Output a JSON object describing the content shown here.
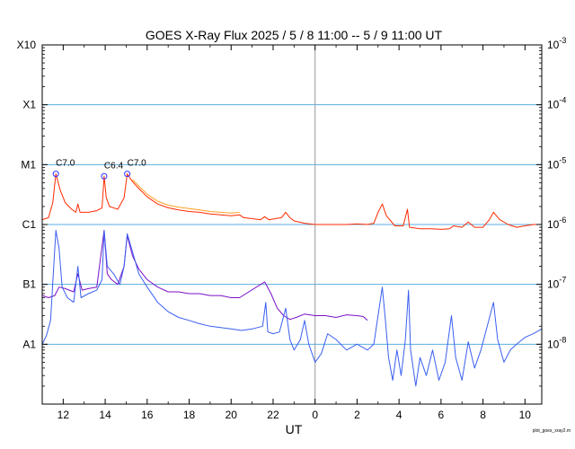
{
  "chart_data": {
    "type": "line",
    "title": "GOES X-Ray Flux   2025 /  5 /  8   11:00 --  5 /  9   11:00   UT",
    "xlabel": "UT",
    "x_ticks": [
      "12",
      "14",
      "16",
      "18",
      "20",
      "22",
      "0",
      "2",
      "4",
      "6",
      "8",
      "10"
    ],
    "x_range": [
      11,
      34.8
    ],
    "day_boundary_hour": 24,
    "y_scale": "log",
    "ylim": [
      1e-09,
      0.001
    ],
    "y_left_ticks": [
      "X10",
      "X1",
      "M1",
      "C1",
      "B1",
      "A1"
    ],
    "y_right_ticks": [
      "10-3",
      "10-4",
      "10-5",
      "10-6",
      "10-7",
      "10-8"
    ],
    "grid": "horizontal",
    "footer": "plot_goes_xray2.m",
    "colors": {
      "long_primary": "#ff2a00",
      "long_secondary": "#ffa020",
      "short_primary": "#3a5ff0",
      "short_secondary": "#7a10c8",
      "grid": "#5aaee0",
      "axis": "#000000",
      "marker": "#3030ff"
    },
    "annotations": [
      {
        "label": "C7.0",
        "hour": 11.65,
        "flux": 7e-06
      },
      {
        "label": "C6.4",
        "hour": 13.95,
        "flux": 6.4e-06
      },
      {
        "label": "C7.0",
        "hour": 15.05,
        "flux": 7e-06
      }
    ],
    "series": [
      {
        "key": "long_primary",
        "points": [
          [
            11.0,
            1.2e-06
          ],
          [
            11.3,
            1.3e-06
          ],
          [
            11.5,
            2.3e-06
          ],
          [
            11.65,
            7e-06
          ],
          [
            11.85,
            3.8e-06
          ],
          [
            12.1,
            2.3e-06
          ],
          [
            12.4,
            1.8e-06
          ],
          [
            12.6,
            1.6e-06
          ],
          [
            12.7,
            2.2e-06
          ],
          [
            12.8,
            1.6e-06
          ],
          [
            13.2,
            1.6e-06
          ],
          [
            13.6,
            1.7e-06
          ],
          [
            13.85,
            1.9e-06
          ],
          [
            13.95,
            6.4e-06
          ],
          [
            14.05,
            2.8e-06
          ],
          [
            14.2,
            2e-06
          ],
          [
            14.6,
            1.8e-06
          ],
          [
            14.9,
            2.8e-06
          ],
          [
            15.05,
            7e-06
          ],
          [
            15.3,
            5.2e-06
          ],
          [
            15.6,
            4e-06
          ],
          [
            16.0,
            2.9e-06
          ],
          [
            16.5,
            2.2e-06
          ],
          [
            17.0,
            1.9e-06
          ],
          [
            17.5,
            1.75e-06
          ],
          [
            18.0,
            1.65e-06
          ],
          [
            18.5,
            1.6e-06
          ],
          [
            19.0,
            1.5e-06
          ],
          [
            19.5,
            1.45e-06
          ],
          [
            20.0,
            1.4e-06
          ],
          [
            20.4,
            1.45e-06
          ],
          [
            20.6,
            1.3e-06
          ],
          [
            21.0,
            1.25e-06
          ],
          [
            21.4,
            1.2e-06
          ],
          [
            21.6,
            1.35e-06
          ],
          [
            21.8,
            1.2e-06
          ],
          [
            22.1,
            1.25e-06
          ],
          [
            22.4,
            1.3e-06
          ],
          [
            22.6,
            1.6e-06
          ],
          [
            22.8,
            1.3e-06
          ],
          [
            23.0,
            1.15e-06
          ],
          [
            23.5,
            1.05e-06
          ],
          [
            24.0,
            1e-06
          ],
          [
            24.5,
            1e-06
          ],
          [
            25.0,
            1e-06
          ],
          [
            25.5,
            1e-06
          ],
          [
            26.0,
            1.02e-06
          ],
          [
            26.5,
            1e-06
          ],
          [
            26.8,
            1.05e-06
          ],
          [
            27.0,
            1.6e-06
          ],
          [
            27.2,
            2.2e-06
          ],
          [
            27.4,
            1.4e-06
          ],
          [
            27.8,
            9.5e-07
          ],
          [
            28.2,
            9.5e-07
          ],
          [
            28.4,
            1.8e-06
          ],
          [
            28.5,
            9e-07
          ],
          [
            29.0,
            8.5e-07
          ],
          [
            29.5,
            8.5e-07
          ],
          [
            30.0,
            8.3e-07
          ],
          [
            30.4,
            8.5e-07
          ],
          [
            30.6,
            9.5e-07
          ],
          [
            31.0,
            9e-07
          ],
          [
            31.3,
            1.1e-06
          ],
          [
            31.6,
            9e-07
          ],
          [
            32.0,
            9e-07
          ],
          [
            32.3,
            1.2e-06
          ],
          [
            32.5,
            1.6e-06
          ],
          [
            32.8,
            1.2e-06
          ],
          [
            33.2,
            1e-06
          ],
          [
            33.6,
            9e-07
          ],
          [
            34.0,
            9.5e-07
          ],
          [
            34.4,
            1e-06
          ],
          [
            34.8,
            1e-06
          ]
        ]
      },
      {
        "key": "long_secondary",
        "points": [
          [
            15.3,
            5.6e-06
          ],
          [
            15.6,
            4.4e-06
          ],
          [
            16.0,
            3.2e-06
          ],
          [
            16.5,
            2.45e-06
          ],
          [
            17.0,
            2.1e-06
          ],
          [
            17.5,
            1.95e-06
          ],
          [
            18.0,
            1.85e-06
          ],
          [
            18.5,
            1.75e-06
          ],
          [
            19.0,
            1.65e-06
          ],
          [
            19.5,
            1.6e-06
          ],
          [
            20.0,
            1.55e-06
          ],
          [
            20.4,
            1.6e-06
          ]
        ]
      },
      {
        "key": "short_primary",
        "points": [
          [
            11.0,
            1e-08
          ],
          [
            11.2,
            1.4e-08
          ],
          [
            11.4,
            2.5e-08
          ],
          [
            11.55,
            2e-07
          ],
          [
            11.65,
            8e-07
          ],
          [
            11.8,
            4e-07
          ],
          [
            11.95,
            9e-08
          ],
          [
            12.2,
            6e-08
          ],
          [
            12.5,
            5e-08
          ],
          [
            12.7,
            2e-07
          ],
          [
            12.85,
            6e-08
          ],
          [
            13.2,
            7e-08
          ],
          [
            13.6,
            8e-08
          ],
          [
            13.85,
            1.2e-07
          ],
          [
            13.95,
            8e-07
          ],
          [
            14.1,
            2e-07
          ],
          [
            14.4,
            1.5e-07
          ],
          [
            14.7,
            1e-07
          ],
          [
            14.9,
            2e-07
          ],
          [
            15.05,
            7e-07
          ],
          [
            15.3,
            3.5e-07
          ],
          [
            15.6,
            1.5e-07
          ],
          [
            16.0,
            9e-08
          ],
          [
            16.5,
            5e-08
          ],
          [
            17.0,
            3.5e-08
          ],
          [
            17.5,
            2.8e-08
          ],
          [
            18.0,
            2.5e-08
          ],
          [
            18.5,
            2.2e-08
          ],
          [
            19.0,
            2e-08
          ],
          [
            19.5,
            1.9e-08
          ],
          [
            20.0,
            1.8e-08
          ],
          [
            20.5,
            1.7e-08
          ],
          [
            21.0,
            1.8e-08
          ],
          [
            21.5,
            2e-08
          ],
          [
            21.65,
            5e-08
          ],
          [
            21.75,
            1.6e-08
          ],
          [
            22.0,
            1.5e-08
          ],
          [
            22.3,
            1.6e-08
          ],
          [
            22.6,
            4e-08
          ],
          [
            22.8,
            1.2e-08
          ],
          [
            23.0,
            8e-09
          ],
          [
            23.3,
            1.2e-08
          ],
          [
            23.5,
            2.5e-08
          ],
          [
            23.7,
            1e-08
          ],
          [
            24.0,
            5e-09
          ],
          [
            24.3,
            7e-09
          ],
          [
            24.6,
            1.5e-08
          ],
          [
            25.0,
            1.2e-08
          ],
          [
            25.5,
            8e-09
          ],
          [
            26.0,
            1e-08
          ],
          [
            26.5,
            8e-09
          ],
          [
            26.8,
            1e-08
          ],
          [
            27.0,
            3e-08
          ],
          [
            27.2,
            9e-08
          ],
          [
            27.35,
            2.5e-08
          ],
          [
            27.5,
            6e-09
          ],
          [
            27.7,
            2.5e-09
          ],
          [
            27.9,
            8e-09
          ],
          [
            28.1,
            3e-09
          ],
          [
            28.3,
            1.2e-08
          ],
          [
            28.45,
            8e-08
          ],
          [
            28.55,
            8e-09
          ],
          [
            28.8,
            2e-09
          ],
          [
            29.0,
            6e-09
          ],
          [
            29.3,
            3e-09
          ],
          [
            29.6,
            8e-09
          ],
          [
            29.9,
            2.5e-09
          ],
          [
            30.2,
            5e-09
          ],
          [
            30.5,
            3e-08
          ],
          [
            30.7,
            6e-09
          ],
          [
            31.0,
            2.5e-09
          ],
          [
            31.3,
            1.1e-08
          ],
          [
            31.6,
            4e-09
          ],
          [
            31.9,
            8e-09
          ],
          [
            32.2,
            2e-08
          ],
          [
            32.5,
            5e-08
          ],
          [
            32.7,
            1.2e-08
          ],
          [
            33.0,
            5e-09
          ],
          [
            33.3,
            8e-09
          ],
          [
            33.6,
            1e-08
          ],
          [
            34.0,
            1.3e-08
          ],
          [
            34.4,
            1.5e-08
          ],
          [
            34.8,
            1.8e-08
          ]
        ]
      },
      {
        "key": "short_secondary",
        "points": [
          [
            11.0,
            6.5e-08
          ],
          [
            11.3,
            6e-08
          ],
          [
            11.6,
            6.5e-08
          ],
          [
            11.8,
            9e-08
          ],
          [
            12.1,
            8.5e-08
          ],
          [
            12.5,
            7.5e-08
          ],
          [
            12.7,
            1.5e-07
          ],
          [
            12.9,
            8e-08
          ],
          [
            13.2,
            8.5e-08
          ],
          [
            13.6,
            9e-08
          ],
          [
            13.95,
            8e-07
          ],
          [
            14.1,
            1.5e-07
          ],
          [
            14.3,
            1.2e-07
          ],
          [
            14.6,
            1e-07
          ],
          [
            14.9,
            2e-07
          ],
          [
            15.05,
            6.5e-07
          ],
          [
            15.3,
            3e-07
          ],
          [
            15.6,
            1.8e-07
          ],
          [
            16.0,
            1.2e-07
          ],
          [
            16.5,
            9e-08
          ],
          [
            17.0,
            7.5e-08
          ],
          [
            17.5,
            7.5e-08
          ],
          [
            18.0,
            7e-08
          ],
          [
            18.5,
            7e-08
          ],
          [
            19.0,
            6.5e-08
          ],
          [
            19.5,
            6.5e-08
          ],
          [
            20.0,
            6e-08
          ],
          [
            20.4,
            6e-08
          ],
          [
            21.6,
            1.1e-07
          ],
          [
            21.9,
            7e-08
          ],
          [
            22.2,
            4e-08
          ],
          [
            22.5,
            3e-08
          ],
          [
            22.8,
            2.6e-08
          ],
          [
            23.1,
            2.8e-08
          ],
          [
            23.5,
            3.2e-08
          ],
          [
            24.0,
            3e-08
          ],
          [
            24.5,
            3e-08
          ],
          [
            25.0,
            2.8e-08
          ],
          [
            25.5,
            3.1e-08
          ],
          [
            26.0,
            3e-08
          ],
          [
            26.3,
            2.9e-08
          ],
          [
            26.5,
            2.5e-08
          ]
        ]
      }
    ]
  }
}
